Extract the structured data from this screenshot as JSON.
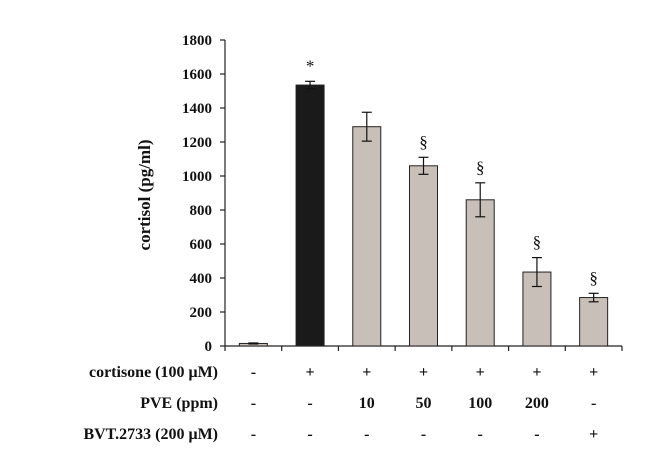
{
  "chart_data": {
    "type": "bar",
    "ylabel": "cortisol (pg/ml)",
    "ylim": [
      0,
      1800
    ],
    "yticks": [
      0,
      200,
      400,
      600,
      800,
      1000,
      1200,
      1400,
      1600,
      1800
    ],
    "grid": false,
    "values": [
      15,
      1535,
      1290,
      1060,
      860,
      435,
      285
    ],
    "errors": [
      3,
      22,
      85,
      50,
      100,
      85,
      25
    ],
    "bar_colors": [
      "#c8bfb8",
      "#1a1a1a",
      "#c8bfb8",
      "#c8bfb8",
      "#c8bfb8",
      "#c8bfb8",
      "#c8bfb8"
    ],
    "annotations": [
      "",
      "*",
      "",
      "§",
      "§",
      "§",
      "§"
    ],
    "conditions": [
      {
        "label": "cortisone (100 μM)",
        "values": [
          "-",
          "+",
          "+",
          "+",
          "+",
          "+",
          "+"
        ]
      },
      {
        "label": "PVE (ppm)",
        "values": [
          "-",
          "-",
          "10",
          "50",
          "100",
          "200",
          "-"
        ]
      },
      {
        "label": "BVT.2733 (200 μM)",
        "values": [
          "-",
          "-",
          "-",
          "-",
          "-",
          "-",
          "+"
        ]
      }
    ]
  }
}
